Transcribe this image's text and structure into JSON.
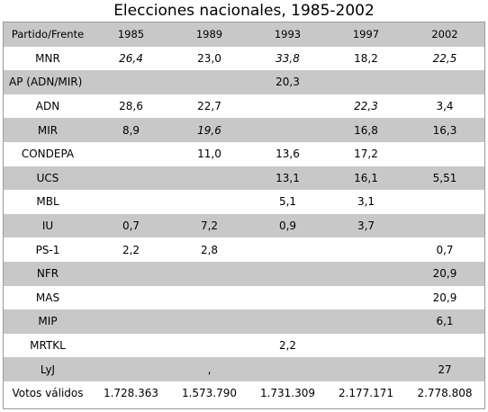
{
  "title": "Elecciones nacionales, 1985-2002",
  "table": {
    "headers": [
      "Partido/Frente",
      "1985",
      "1989",
      "1993",
      "1997",
      "2002"
    ],
    "rows": [
      {
        "party": "MNR",
        "values": [
          "26,4",
          "23,0",
          "33,8",
          "18,2",
          "22,5"
        ],
        "italic": [
          true,
          false,
          true,
          false,
          true
        ]
      },
      {
        "party": "AP (ADN/MIR)",
        "values": [
          "",
          "",
          "20,3",
          "",
          ""
        ],
        "italic": [
          false,
          false,
          false,
          false,
          false
        ]
      },
      {
        "party": "ADN",
        "values": [
          "28,6",
          "22,7",
          "",
          "22,3",
          "3,4"
        ],
        "italic": [
          false,
          false,
          false,
          true,
          false
        ]
      },
      {
        "party": "MIR",
        "values": [
          "8,9",
          "19,6",
          "",
          "16,8",
          "16,3"
        ],
        "italic": [
          false,
          true,
          false,
          false,
          false
        ]
      },
      {
        "party": "CONDEPA",
        "values": [
          "",
          "11,0",
          "13,6",
          "17,2",
          ""
        ],
        "italic": [
          false,
          false,
          false,
          false,
          false
        ]
      },
      {
        "party": "UCS",
        "values": [
          "",
          "",
          "13,1",
          "16,1",
          "5,51"
        ],
        "italic": [
          false,
          false,
          false,
          false,
          false
        ]
      },
      {
        "party": "MBL",
        "values": [
          "",
          "",
          "5,1",
          "3,1",
          ""
        ],
        "italic": [
          false,
          false,
          false,
          false,
          false
        ]
      },
      {
        "party": "IU",
        "values": [
          "0,7",
          "7,2",
          "0,9",
          "3,7",
          ""
        ],
        "italic": [
          false,
          false,
          false,
          false,
          false
        ]
      },
      {
        "party": "PS-1",
        "values": [
          "2,2",
          "2,8",
          "",
          "",
          "0,7"
        ],
        "italic": [
          false,
          false,
          false,
          false,
          false
        ]
      },
      {
        "party": "NFR",
        "values": [
          "",
          "",
          "",
          "",
          "20,9"
        ],
        "italic": [
          false,
          false,
          false,
          false,
          false
        ]
      },
      {
        "party": "MAS",
        "values": [
          "",
          "",
          "",
          "",
          "20,9"
        ],
        "italic": [
          false,
          false,
          false,
          false,
          false
        ]
      },
      {
        "party": "MIP",
        "values": [
          "",
          "",
          "",
          "",
          "6,1"
        ],
        "italic": [
          false,
          false,
          false,
          false,
          false
        ]
      },
      {
        "party": "MRTKL",
        "values": [
          "",
          "",
          "2,2",
          "",
          ""
        ],
        "italic": [
          false,
          false,
          false,
          false,
          false
        ]
      },
      {
        "party": "LyJ",
        "values": [
          "",
          ",",
          "",
          "",
          "27"
        ],
        "italic": [
          false,
          false,
          false,
          false,
          false
        ]
      }
    ],
    "totals": {
      "label": "Votos válidos",
      "values": [
        "1.728.363",
        "1.573.790",
        "1.731.309",
        "2.177.171",
        "2.778.808"
      ]
    }
  },
  "colors": {
    "shaded_row": "#c8c8c8",
    "border": "#9a9a9a"
  }
}
